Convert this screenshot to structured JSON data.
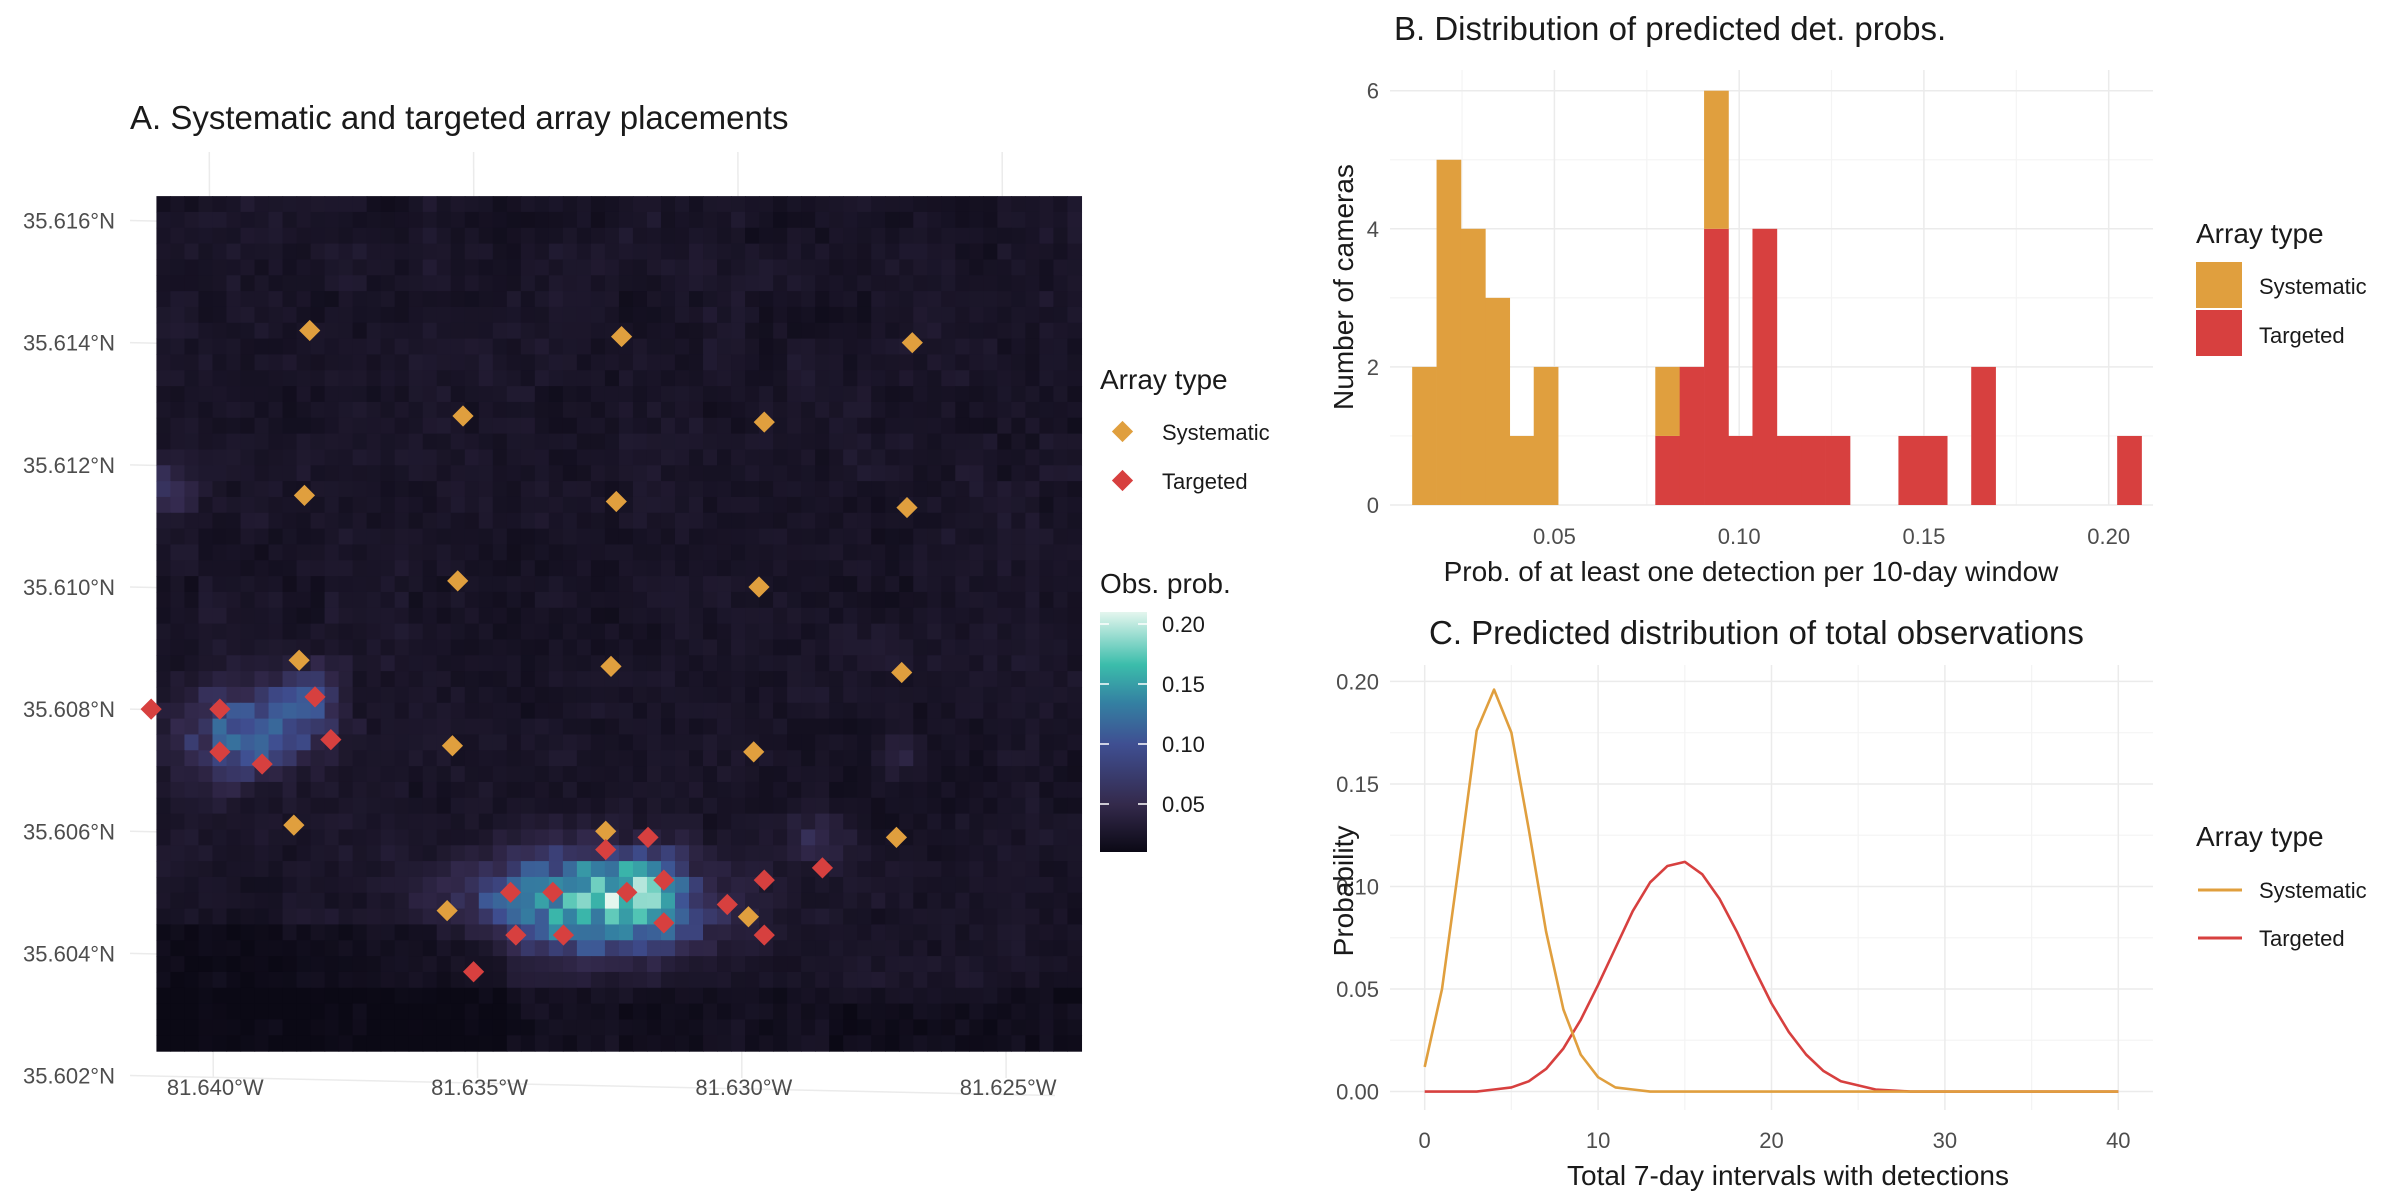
{
  "chart_data": [
    {
      "id": "A",
      "type": "heatmap",
      "title": "A. Systematic and targeted array placements",
      "x_ticks": [
        "81.640°W",
        "81.635°W",
        "81.630°W",
        "81.625°W"
      ],
      "y_ticks": [
        "35.616°N",
        "35.614°N",
        "35.612°N",
        "35.610°N",
        "35.608°N",
        "35.606°N",
        "35.604°N",
        "35.602°N"
      ],
      "xlim": [
        -81.6415,
        -81.624
      ],
      "ylim": [
        35.6025,
        35.6165
      ],
      "raster_extent": {
        "lon": [
          -81.641,
          -81.6235
        ],
        "lat": [
          35.6024,
          35.6164
        ]
      },
      "grid": true,
      "legend_markers": {
        "title": "Array type",
        "entries": [
          {
            "label": "Systematic",
            "color": "#E09F3E"
          },
          {
            "label": "Targeted",
            "color": "#D7403F"
          }
        ]
      },
      "legend_colorbar": {
        "title": "Obs. prob.",
        "ticks": [
          "0.20",
          "0.15",
          "0.10",
          "0.05"
        ],
        "range": [
          0.01,
          0.21
        ]
      },
      "series": [
        {
          "name": "Systematic",
          "color": "#E09F3E",
          "points": [
            [
              -81.6381,
              35.6142
            ],
            [
              -81.6322,
              35.6141
            ],
            [
              -81.6267,
              35.614
            ],
            [
              -81.6352,
              35.6128
            ],
            [
              -81.6295,
              35.6127
            ],
            [
              -81.6382,
              35.6115
            ],
            [
              -81.6323,
              35.6114
            ],
            [
              -81.6268,
              35.6113
            ],
            [
              -81.6353,
              35.6101
            ],
            [
              -81.6296,
              35.61
            ],
            [
              -81.6383,
              35.6088
            ],
            [
              -81.6324,
              35.6087
            ],
            [
              -81.6269,
              35.6086
            ],
            [
              -81.6354,
              35.6074
            ],
            [
              -81.6297,
              35.6073
            ],
            [
              -81.6384,
              35.6061
            ],
            [
              -81.6325,
              35.606
            ],
            [
              -81.627,
              35.6059
            ],
            [
              -81.6355,
              35.6047
            ],
            [
              -81.6298,
              35.6046
            ]
          ]
        },
        {
          "name": "Targeted",
          "color": "#D7403F",
          "points": [
            [
              -81.6411,
              35.608
            ],
            [
              -81.6398,
              35.608
            ],
            [
              -81.638,
              35.6082
            ],
            [
              -81.6398,
              35.6073
            ],
            [
              -81.6377,
              35.6075
            ],
            [
              -81.639,
              35.6071
            ],
            [
              -81.6325,
              35.6057
            ],
            [
              -81.6317,
              35.6059
            ],
            [
              -81.6343,
              35.605
            ],
            [
              -81.6335,
              35.605
            ],
            [
              -81.6321,
              35.605
            ],
            [
              -81.6314,
              35.6052
            ],
            [
              -81.6295,
              35.6052
            ],
            [
              -81.6284,
              35.6054
            ],
            [
              -81.6342,
              35.6043
            ],
            [
              -81.6333,
              35.6043
            ],
            [
              -81.6314,
              35.6045
            ],
            [
              -81.6302,
              35.6048
            ],
            [
              -81.6295,
              35.6043
            ],
            [
              -81.635,
              35.6037
            ]
          ]
        }
      ]
    },
    {
      "id": "B",
      "type": "bar",
      "stacked": true,
      "title": "B. Distribution of predicted det. probs.",
      "xlabel": "Prob. of at least one detection per 10-day window",
      "ylabel": "Number of cameras",
      "xlim": [
        0.0055,
        0.212
      ],
      "ylim": [
        0,
        6.3
      ],
      "x_ticks": [
        0.05,
        0.1,
        0.15,
        0.2
      ],
      "x_tick_labels": [
        "0.05",
        "0.10",
        "0.15",
        "0.20"
      ],
      "y_ticks": [
        0,
        2,
        4,
        6
      ],
      "y_tick_labels": [
        "0",
        "2",
        "4",
        "6"
      ],
      "grid": true,
      "bin_width": 0.006579,
      "bin_starts": [
        0.0115,
        0.0181,
        0.0247,
        0.0313,
        0.0378,
        0.0444,
        0.0773,
        0.0839,
        0.0905,
        0.097,
        0.1036,
        0.1102,
        0.1168,
        0.1234,
        0.1431,
        0.1497,
        0.1628,
        0.2023
      ],
      "legend": {
        "title": "Array type",
        "position": "right"
      },
      "series": [
        {
          "name": "Systematic",
          "color": "#E09F3E",
          "values": [
            2,
            5,
            4,
            3,
            1,
            2,
            1,
            0,
            2,
            0,
            0,
            0,
            0,
            0,
            0,
            0,
            0,
            0
          ]
        },
        {
          "name": "Targeted",
          "color": "#D7403F",
          "values": [
            0,
            0,
            0,
            0,
            0,
            0,
            1,
            2,
            4,
            1,
            4,
            1,
            1,
            1,
            1,
            1,
            2,
            1
          ]
        }
      ]
    },
    {
      "id": "C",
      "type": "line",
      "title": "C. Predicted distribution of total observations",
      "xlabel": "Total 7-day intervals with detections",
      "ylabel": "Probability",
      "xlim": [
        -2,
        42
      ],
      "ylim": [
        -0.009,
        0.208
      ],
      "x_ticks": [
        0,
        10,
        20,
        30,
        40
      ],
      "x_tick_labels": [
        "0",
        "10",
        "20",
        "30",
        "40"
      ],
      "y_ticks": [
        0,
        0.05,
        0.1,
        0.15,
        0.2
      ],
      "y_tick_labels": [
        "0.00",
        "0.05",
        "0.10",
        "0.15",
        "0.20"
      ],
      "grid": true,
      "legend": {
        "title": "Array type",
        "position": "right"
      },
      "x": [
        0,
        1,
        2,
        3,
        4,
        5,
        6,
        7,
        8,
        9,
        10,
        11,
        12,
        13,
        14,
        15,
        16,
        17,
        18,
        19,
        20,
        21,
        22,
        23,
        24,
        25,
        26,
        27,
        28,
        29,
        30,
        31,
        32,
        33,
        34,
        35,
        36,
        37,
        38,
        39,
        40
      ],
      "series": [
        {
          "name": "Systematic",
          "color": "#E09F3E",
          "values": [
            0.012,
            0.05,
            0.112,
            0.176,
            0.196,
            0.175,
            0.128,
            0.078,
            0.04,
            0.018,
            0.007,
            0.002,
            0.001,
            0,
            0,
            0,
            0,
            0,
            0,
            0,
            0,
            0,
            0,
            0,
            0,
            0,
            0,
            0,
            0,
            0,
            0,
            0,
            0,
            0,
            0,
            0,
            0,
            0,
            0,
            0,
            0
          ]
        },
        {
          "name": "Targeted",
          "color": "#D7403F",
          "values": [
            0,
            0,
            0,
            0,
            0.001,
            0.002,
            0.005,
            0.011,
            0.021,
            0.035,
            0.052,
            0.07,
            0.088,
            0.102,
            0.11,
            0.112,
            0.106,
            0.094,
            0.078,
            0.06,
            0.043,
            0.029,
            0.018,
            0.01,
            0.005,
            0.003,
            0.001,
            0.0005,
            0,
            0,
            0,
            0,
            0,
            0,
            0,
            0,
            0,
            0,
            0,
            0,
            0
          ]
        }
      ]
    }
  ]
}
